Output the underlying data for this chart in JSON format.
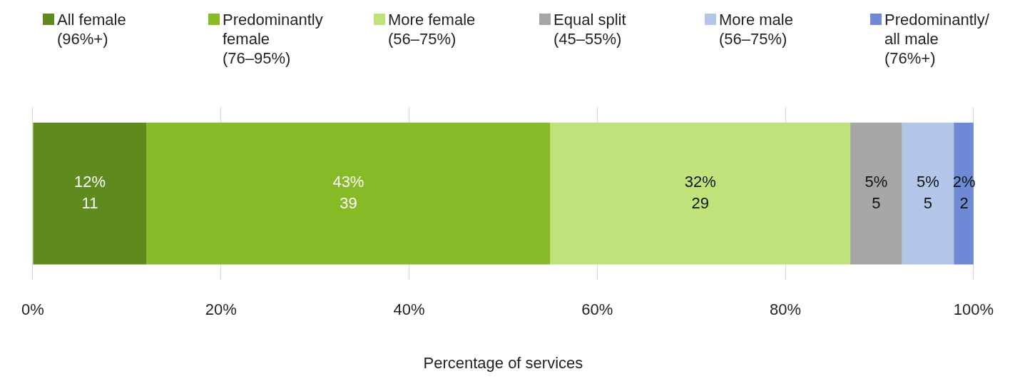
{
  "chart_data": {
    "type": "bar",
    "orientation": "horizontal",
    "stacked": true,
    "categories": [
      null
    ],
    "xlabel": "Percentage of services",
    "xlim": [
      0,
      100
    ],
    "xticks": [
      {
        "value": 0,
        "label": "0%"
      },
      {
        "value": 20,
        "label": "20%"
      },
      {
        "value": 40,
        "label": "40%"
      },
      {
        "value": 60,
        "label": "60%"
      },
      {
        "value": 80,
        "label": "80%"
      },
      {
        "value": 100,
        "label": "100%"
      }
    ],
    "grid": "x",
    "legend": "top",
    "series": [
      {
        "name": "All female (96%+)",
        "color": "#5f8a1e",
        "values": [
          12.1
        ],
        "value_labels": [
          "12%\n11"
        ]
      },
      {
        "name": "Predominantly female (76–95%)",
        "color": "#86bb27",
        "values": [
          42.9
        ],
        "value_labels": [
          "43%\n39"
        ]
      },
      {
        "name": "More female (56–75%)",
        "color": "#bfe37a",
        "values": [
          31.9
        ],
        "value_labels": [
          "32%\n29"
        ]
      },
      {
        "name": "Equal split (45–55%)",
        "color": "#a6a6a6",
        "values": [
          5.5
        ],
        "value_labels": [
          "5%\n5"
        ]
      },
      {
        "name": "More male (56–75%)",
        "color": "#b4c5ea",
        "values": [
          5.5
        ],
        "value_labels": [
          "5%\n5"
        ]
      },
      {
        "name": "Predominantly/ all male (76%+)",
        "color": "#6f8ad4",
        "values": [
          2.2
        ],
        "value_labels": [
          "2%\n2"
        ]
      }
    ]
  }
}
